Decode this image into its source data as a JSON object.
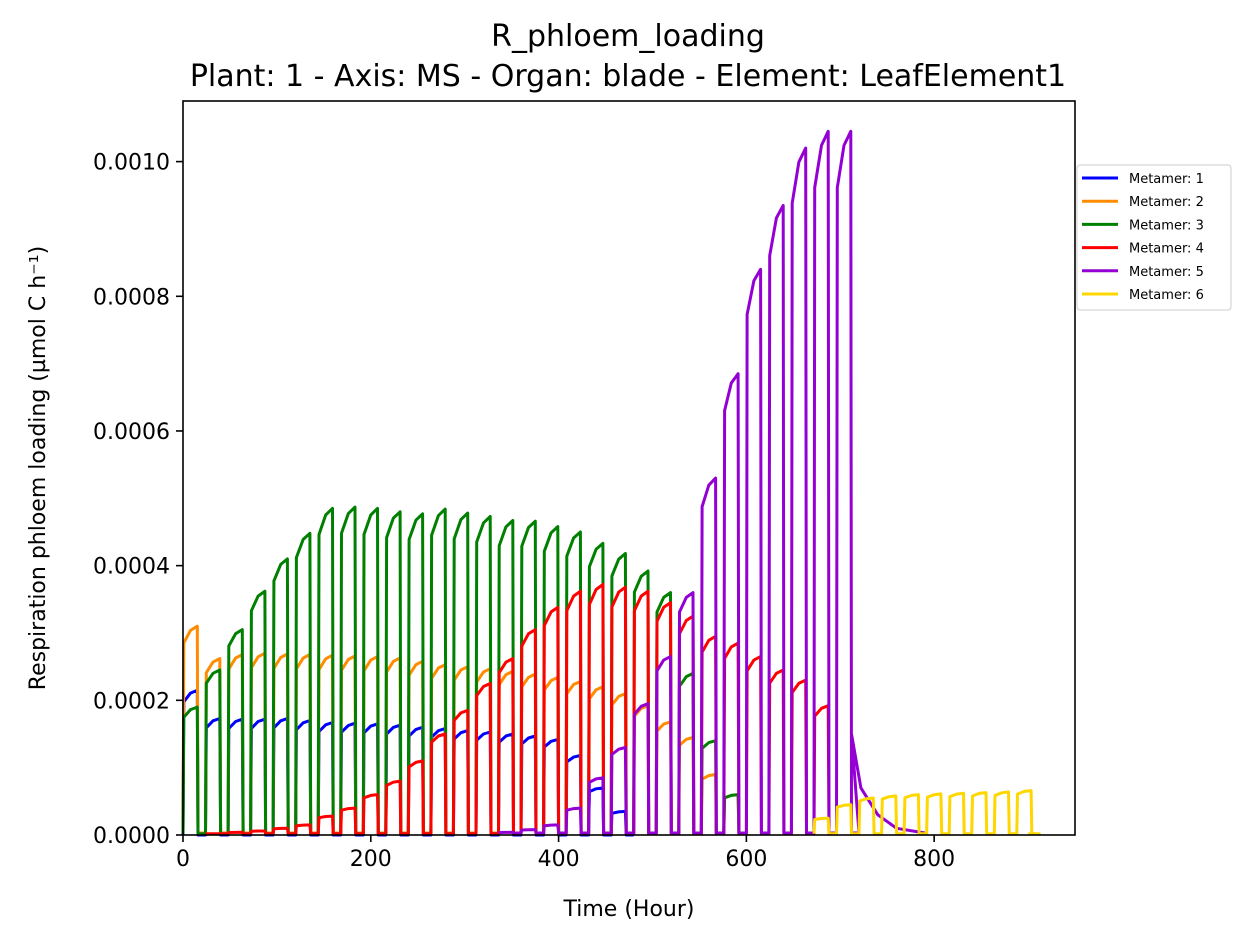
{
  "chart_data": {
    "type": "line",
    "title": "R_phloem_loading",
    "subtitle": "Plant: 1 - Axis: MS - Organ: blade - Element: LeafElement1",
    "xlabel": "Time (Hour)",
    "ylabel": "Respiration phloem loading (µmol C h⁻¹)",
    "xlim": [
      0,
      950
    ],
    "ylim": [
      0,
      0.00109
    ],
    "x_ticks": [
      0,
      200,
      400,
      600,
      800
    ],
    "x_tick_labels": [
      "0",
      "200",
      "400",
      "600",
      "800"
    ],
    "y_ticks": [
      0,
      0.0002,
      0.0004,
      0.0006,
      0.0008,
      0.001
    ],
    "y_tick_labels": [
      "0.0000",
      "0.0002",
      "0.0004",
      "0.0006",
      "0.0008",
      "0.0010"
    ],
    "grid": false,
    "legend_position": "right, outside plot area",
    "day_period_hours": 24,
    "light_hours_per_day": 16,
    "series": [
      {
        "name": "Metamer: 1",
        "color": "#0000ff",
        "day_start_hours": [
          0,
          24,
          48,
          72,
          96,
          120,
          144,
          168,
          192,
          216,
          240,
          264,
          288,
          312,
          336,
          360,
          384,
          408,
          432,
          456
        ],
        "day_peak_values": [
          0.000215,
          0.000173,
          0.000172,
          0.000172,
          0.000173,
          0.00017,
          0.000167,
          0.000166,
          0.000165,
          0.000163,
          0.00016,
          0.000158,
          0.000155,
          0.000153,
          0.00015,
          0.000147,
          0.000142,
          0.000118,
          7e-05,
          3.5e-05
        ],
        "night_value": 0.0
      },
      {
        "name": "Metamer: 2",
        "color": "#ff8c00",
        "day_start_hours": [
          0,
          24,
          48,
          72,
          96,
          120,
          144,
          168,
          192,
          216,
          240,
          264,
          288,
          312,
          336,
          360,
          384,
          408,
          432,
          456,
          480,
          504,
          528,
          552,
          576
        ],
        "day_peak_values": [
          0.00031,
          0.000262,
          0.000268,
          0.00027,
          0.000269,
          0.000268,
          0.000267,
          0.000266,
          0.000265,
          0.000263,
          0.000258,
          0.000253,
          0.00025,
          0.000247,
          0.000243,
          0.000239,
          0.000234,
          0.000228,
          0.00022,
          0.00021,
          0.000192,
          0.000168,
          0.000145,
          9e-05,
          6e-05
        ],
        "night_value": 3e-06
      },
      {
        "name": "Metamer: 3",
        "color": "#008000",
        "day_start_hours": [
          0,
          24,
          48,
          72,
          96,
          120,
          144,
          168,
          192,
          216,
          240,
          264,
          288,
          312,
          336,
          360,
          384,
          408,
          432,
          456,
          480,
          504,
          528,
          552,
          576
        ],
        "day_peak_values": [
          0.00019,
          0.000245,
          0.000305,
          0.000362,
          0.00041,
          0.000448,
          0.000485,
          0.000487,
          0.000485,
          0.00048,
          0.000477,
          0.000484,
          0.000478,
          0.000473,
          0.000467,
          0.000466,
          0.000458,
          0.00045,
          0.000433,
          0.000418,
          0.000392,
          0.00036,
          0.00024,
          0.00014,
          6e-05
        ],
        "night_value": 2e-06
      },
      {
        "name": "Metamer: 4",
        "color": "#ff0000",
        "day_start_hours": [
          24,
          48,
          72,
          96,
          120,
          144,
          168,
          192,
          216,
          240,
          264,
          288,
          312,
          336,
          360,
          384,
          408,
          432,
          456,
          480,
          504,
          528,
          552,
          576,
          600,
          624,
          648,
          672
        ],
        "day_peak_values": [
          2e-06,
          4e-06,
          6e-06,
          1e-05,
          1.5e-05,
          2.8e-05,
          4e-05,
          6e-05,
          8e-05,
          0.00011,
          0.00015,
          0.000185,
          0.000225,
          0.000262,
          0.000305,
          0.000338,
          0.000362,
          0.000372,
          0.000368,
          0.000362,
          0.000345,
          0.000325,
          0.000295,
          0.000285,
          0.000265,
          0.000245,
          0.00023,
          0.000192
        ],
        "night_value": 2e-06
      },
      {
        "name": "Metamer: 5",
        "color": "#9400d3",
        "day_start_hours": [
          336,
          360,
          384,
          408,
          432,
          456,
          480,
          504,
          528,
          552,
          576,
          600,
          624,
          648,
          672,
          696
        ],
        "day_peak_values": [
          4e-06,
          8e-06,
          1.5e-05,
          4e-05,
          8.5e-05,
          0.00013,
          0.000195,
          0.000265,
          0.00036,
          0.00053,
          0.000685,
          0.00084,
          0.000935,
          0.00102,
          0.001045,
          0.001045
        ],
        "night_value": 3e-06,
        "final_decay": [
          [
            712,
            0.00015
          ],
          [
            722,
            7e-05
          ],
          [
            740,
            3e-05
          ],
          [
            760,
            1e-05
          ],
          [
            790,
            3e-06
          ]
        ]
      },
      {
        "name": "Metamer: 6",
        "color": "#ffd700",
        "day_start_hours": [
          672,
          696,
          720,
          744,
          768,
          792,
          816,
          840,
          864,
          888
        ],
        "day_peak_values": [
          2.5e-05,
          4.5e-05,
          5.5e-05,
          5.8e-05,
          6e-05,
          6.1e-05,
          6.2e-05,
          6.3e-05,
          6.4e-05,
          6.6e-05
        ],
        "night_value": 2e-06,
        "x_end": 900
      }
    ]
  }
}
